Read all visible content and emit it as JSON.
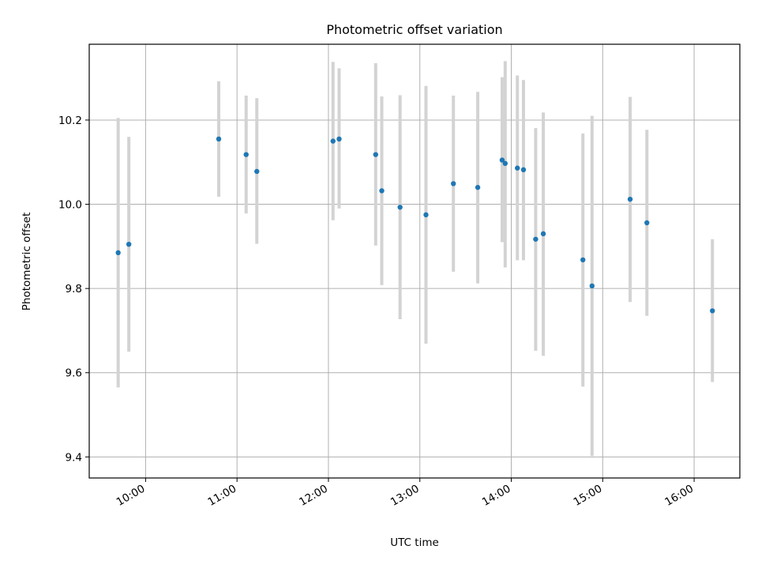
{
  "chart_data": {
    "type": "scatter",
    "title": "Photometric offset variation",
    "xlabel": "UTC time",
    "ylabel": "Photometric offset",
    "xlim": [
      "09:23",
      "16:30"
    ],
    "ylim": [
      9.35,
      10.38
    ],
    "x_ticks": [
      "10:00",
      "11:00",
      "12:00",
      "13:00",
      "14:00",
      "15:00",
      "16:00"
    ],
    "y_ticks": [
      9.4,
      9.6,
      9.8,
      10.0,
      10.2
    ],
    "y_tick_labels": [
      "9.4",
      "9.6",
      "9.8",
      "10.0",
      "10.2"
    ],
    "grid": true,
    "colors": {
      "marker": "#1f77b4",
      "errorbar": "#d3d3d3",
      "grid": "#b0b0b0"
    },
    "series": [
      {
        "points": [
          {
            "x": "09:42",
            "y": 9.885,
            "ylow": 9.565,
            "yhigh": 10.205
          },
          {
            "x": "09:49",
            "y": 9.905,
            "ylow": 9.65,
            "yhigh": 10.16
          },
          {
            "x": "10:48",
            "y": 10.155,
            "ylow": 10.018,
            "yhigh": 10.292
          },
          {
            "x": "11:06",
            "y": 10.118,
            "ylow": 9.978,
            "yhigh": 10.258
          },
          {
            "x": "11:13",
            "y": 10.078,
            "ylow": 9.906,
            "yhigh": 10.252
          },
          {
            "x": "12:03",
            "y": 10.15,
            "ylow": 9.962,
            "yhigh": 10.338
          },
          {
            "x": "12:07",
            "y": 10.155,
            "ylow": 9.99,
            "yhigh": 10.323
          },
          {
            "x": "12:31",
            "y": 10.118,
            "ylow": 9.902,
            "yhigh": 10.335
          },
          {
            "x": "12:35",
            "y": 10.032,
            "ylow": 9.808,
            "yhigh": 10.256
          },
          {
            "x": "12:47",
            "y": 9.993,
            "ylow": 9.727,
            "yhigh": 10.259
          },
          {
            "x": "13:04",
            "y": 9.975,
            "ylow": 9.669,
            "yhigh": 10.281
          },
          {
            "x": "13:22",
            "y": 10.049,
            "ylow": 9.84,
            "yhigh": 10.258
          },
          {
            "x": "13:38",
            "y": 10.04,
            "ylow": 9.812,
            "yhigh": 10.267
          },
          {
            "x": "13:54",
            "y": 10.105,
            "ylow": 9.91,
            "yhigh": 10.302
          },
          {
            "x": "13:56",
            "y": 10.097,
            "ylow": 9.85,
            "yhigh": 10.34
          },
          {
            "x": "14:04",
            "y": 10.086,
            "ylow": 9.867,
            "yhigh": 10.306
          },
          {
            "x": "14:08",
            "y": 10.082,
            "ylow": 9.867,
            "yhigh": 10.295
          },
          {
            "x": "14:16",
            "y": 9.917,
            "ylow": 9.652,
            "yhigh": 10.181
          },
          {
            "x": "14:21",
            "y": 9.93,
            "ylow": 9.64,
            "yhigh": 10.218
          },
          {
            "x": "14:47",
            "y": 9.868,
            "ylow": 9.567,
            "yhigh": 10.168
          },
          {
            "x": "14:53",
            "y": 9.806,
            "ylow": 9.402,
            "yhigh": 10.21
          },
          {
            "x": "15:18",
            "y": 10.012,
            "ylow": 9.768,
            "yhigh": 10.255
          },
          {
            "x": "15:29",
            "y": 9.956,
            "ylow": 9.735,
            "yhigh": 10.177
          },
          {
            "x": "16:12",
            "y": 9.747,
            "ylow": 9.578,
            "yhigh": 9.917
          }
        ]
      }
    ]
  }
}
